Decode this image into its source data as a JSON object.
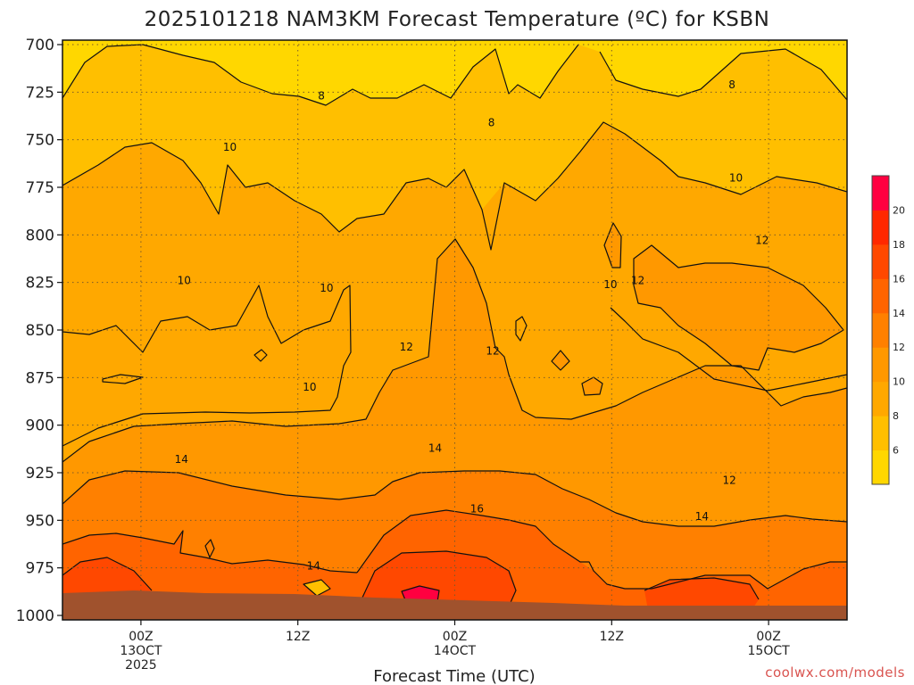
{
  "chart_data": {
    "type": "heatmap",
    "title": "2025101218 NAM3KM Forecast Temperature (ºC) for KSBN",
    "xlabel": "Forecast Time (UTC)",
    "ylabel": "",
    "y_pressure_levels": [
      700,
      725,
      750,
      775,
      800,
      825,
      850,
      875,
      900,
      925,
      950,
      975,
      1000
    ],
    "y_tick_labels": [
      "700",
      "725",
      "750",
      "775",
      "800",
      "825",
      "850",
      "875",
      "900",
      "925",
      "950",
      "975",
      "1000"
    ],
    "ylim": [
      1000,
      700
    ],
    "x_forecast_hours": [
      6,
      18,
      30,
      42,
      54
    ],
    "x_ticks": [
      {
        "hour": 6,
        "line1": "00Z",
        "line2": "13OCT",
        "line3": "2025"
      },
      {
        "hour": 18,
        "line1": "12Z",
        "line2": "",
        "line3": ""
      },
      {
        "hour": 30,
        "line1": "00Z",
        "line2": "14OCT",
        "line3": ""
      },
      {
        "hour": 42,
        "line1": "12Z",
        "line2": "",
        "line3": ""
      },
      {
        "hour": 54,
        "line1": "00Z",
        "line2": "15OCT",
        "line3": ""
      }
    ],
    "xlim": [
      0,
      60
    ],
    "contour_levels": [
      6,
      8,
      10,
      12,
      14,
      16,
      18,
      20
    ],
    "contour_labels": [
      {
        "value": 8,
        "hour": 19.8,
        "pressure": 727
      },
      {
        "value": 8,
        "hour": 32.8,
        "pressure": 741
      },
      {
        "value": 8,
        "hour": 51.2,
        "pressure": 721
      },
      {
        "value": 10,
        "hour": 12.8,
        "pressure": 754
      },
      {
        "value": 10,
        "hour": 51.5,
        "pressure": 770
      },
      {
        "value": 10,
        "hour": 9.3,
        "pressure": 824
      },
      {
        "value": 10,
        "hour": 20.2,
        "pressure": 828
      },
      {
        "value": 10,
        "hour": 18.9,
        "pressure": 880
      },
      {
        "value": 10,
        "hour": 41.9,
        "pressure": 826
      },
      {
        "value": 12,
        "hour": 26.3,
        "pressure": 859
      },
      {
        "value": 12,
        "hour": 32.9,
        "pressure": 861
      },
      {
        "value": 12,
        "hour": 44.0,
        "pressure": 824
      },
      {
        "value": 12,
        "hour": 53.5,
        "pressure": 803
      },
      {
        "value": 12,
        "hour": 51.0,
        "pressure": 929
      },
      {
        "value": 14,
        "hour": 9.1,
        "pressure": 918
      },
      {
        "value": 14,
        "hour": 28.5,
        "pressure": 912
      },
      {
        "value": 14,
        "hour": 48.9,
        "pressure": 948
      },
      {
        "value": 14,
        "hour": 19.2,
        "pressure": 974
      },
      {
        "value": 16,
        "hour": 31.7,
        "pressure": 944
      }
    ],
    "colorbar": {
      "ticks": [
        "6",
        "8",
        "10",
        "12",
        "14",
        "16",
        "18",
        "20"
      ],
      "colors": [
        "#ffd700",
        "#ffbf00",
        "#ffa800",
        "#ff9800",
        "#ff8000",
        "#ff6400",
        "#ff4800",
        "#ff2800",
        "#ff0040"
      ]
    },
    "terrain_color": "#a0522d"
  },
  "credit": "coolwx.com/models"
}
